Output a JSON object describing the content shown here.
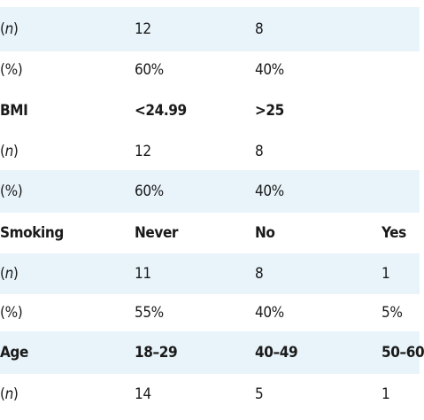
{
  "table": {
    "rows": [
      {
        "type": "data",
        "shaded": true,
        "cells": [
          "(n)",
          "12",
          "8",
          ""
        ]
      },
      {
        "type": "data",
        "shaded": false,
        "cells": [
          "(%)",
          "60%",
          "40%",
          ""
        ]
      },
      {
        "type": "header",
        "shaded": true,
        "cells": [
          "BMI",
          "<24.99",
          ">25",
          ""
        ]
      },
      {
        "type": "data",
        "shaded": false,
        "cells": [
          "(n)",
          "12",
          "8",
          ""
        ]
      },
      {
        "type": "data",
        "shaded": true,
        "cells": [
          "(%)",
          "60%",
          "40%",
          ""
        ]
      },
      {
        "type": "header",
        "shaded": false,
        "cells": [
          "Smoking",
          "Never",
          "No",
          "Yes"
        ]
      },
      {
        "type": "data",
        "shaded": true,
        "cells": [
          "(n)",
          "11",
          "8",
          "1"
        ]
      },
      {
        "type": "data",
        "shaded": false,
        "cells": [
          "(%)",
          "55%",
          "40%",
          "5%"
        ]
      },
      {
        "type": "header",
        "shaded": true,
        "cells": [
          "Age",
          "18–29",
          "40–49",
          "50–60"
        ]
      },
      {
        "type": "data",
        "shaded": false,
        "cells": [
          "(n)",
          "14",
          "5",
          "1"
        ]
      }
    ]
  }
}
